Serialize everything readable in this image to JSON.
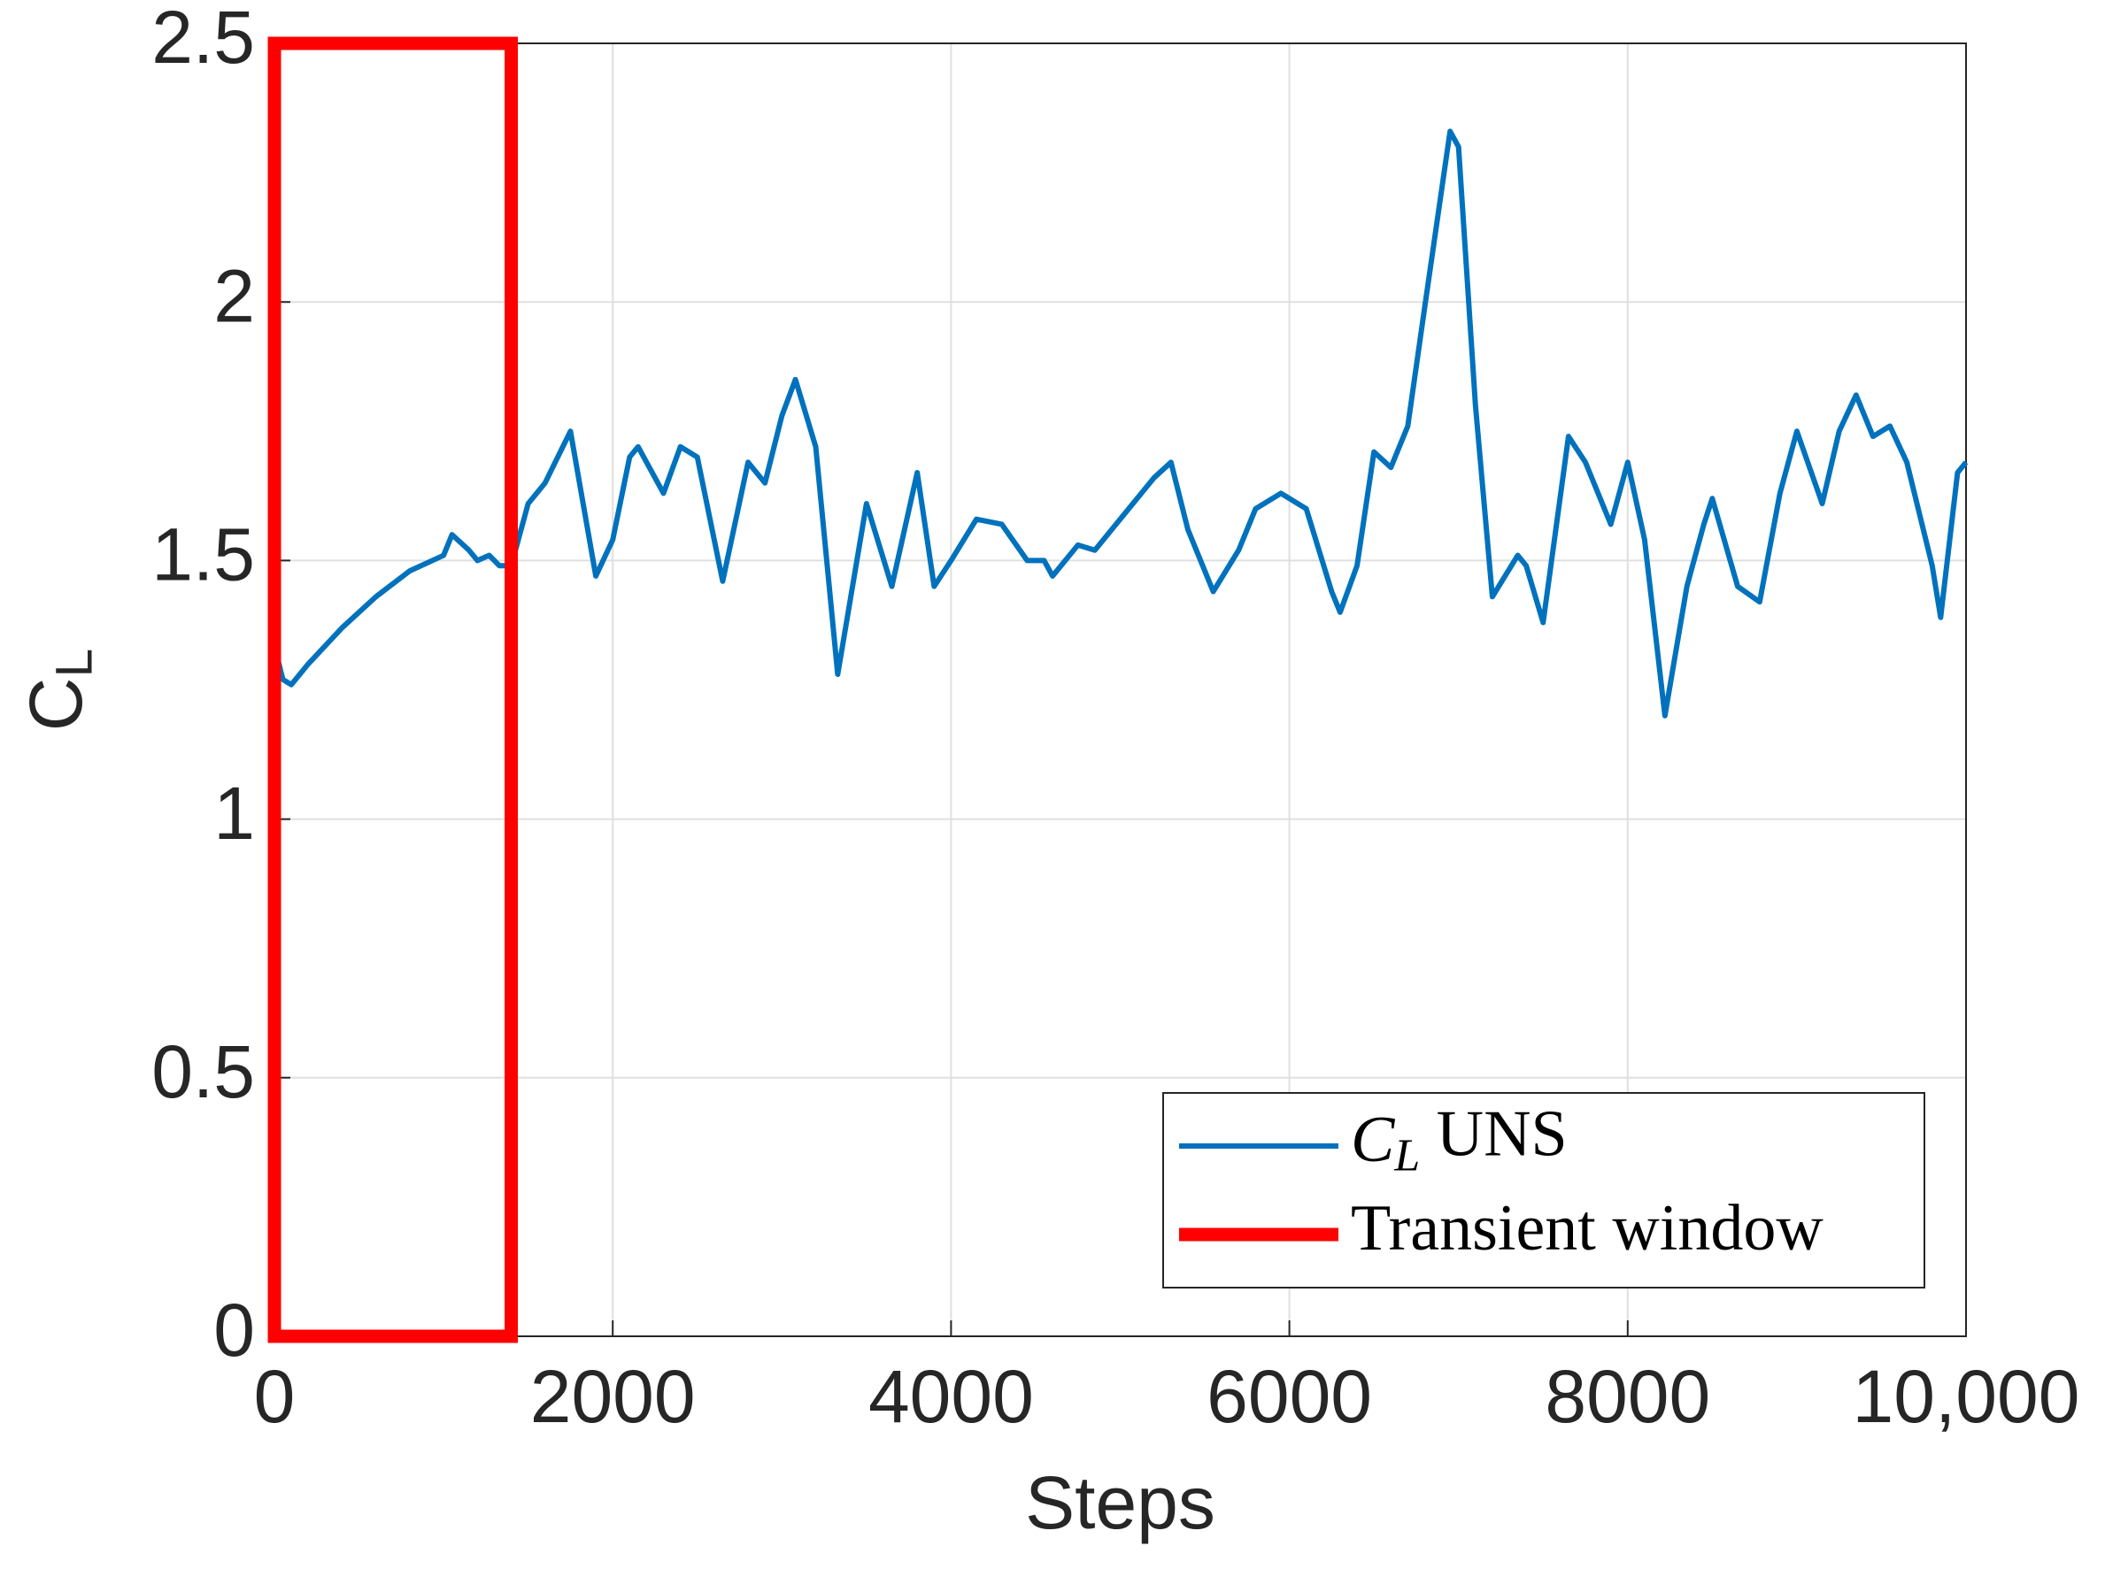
{
  "chart_data": {
    "type": "line",
    "xlabel": "Steps",
    "ylabel": "CL",
    "x": [
      0,
      50,
      100,
      200,
      400,
      600,
      800,
      1000,
      1050,
      1150,
      1200,
      1270,
      1330,
      1400,
      1500,
      1600,
      1750,
      1900,
      2000,
      2100,
      2150,
      2300,
      2400,
      2500,
      2650,
      2800,
      2900,
      3000,
      3080,
      3200,
      3330,
      3500,
      3650,
      3800,
      3900,
      4000,
      4150,
      4300,
      4450,
      4550,
      4600,
      4750,
      4850,
      5000,
      5200,
      5300,
      5400,
      5550,
      5700,
      5800,
      5950,
      6100,
      6250,
      6300,
      6400,
      6500,
      6600,
      6700,
      6800,
      6950,
      7000,
      7100,
      7200,
      7350,
      7400,
      7500,
      7650,
      7750,
      7900,
      8000,
      8100,
      8220,
      8350,
      8450,
      8500,
      8650,
      8780,
      8900,
      9000,
      9150,
      9250,
      9350,
      9450,
      9550,
      9650,
      9800,
      9850,
      9950,
      10000
    ],
    "series": [
      {
        "name": "CL UNS",
        "color": "#0072bd",
        "values": [
          1.335,
          1.27,
          1.26,
          1.3,
          1.37,
          1.43,
          1.48,
          1.51,
          1.55,
          1.52,
          1.5,
          1.51,
          1.49,
          1.49,
          1.61,
          1.65,
          1.75,
          1.47,
          1.54,
          1.7,
          1.72,
          1.63,
          1.72,
          1.7,
          1.46,
          1.69,
          1.65,
          1.78,
          1.85,
          1.72,
          1.28,
          1.61,
          1.45,
          1.67,
          1.45,
          1.5,
          1.58,
          1.57,
          1.5,
          1.5,
          1.47,
          1.53,
          1.52,
          1.58,
          1.66,
          1.69,
          1.56,
          1.44,
          1.52,
          1.6,
          1.63,
          1.6,
          1.44,
          1.4,
          1.49,
          1.71,
          1.68,
          1.76,
          1.99,
          2.33,
          2.3,
          1.8,
          1.43,
          1.51,
          1.49,
          1.38,
          1.74,
          1.69,
          1.57,
          1.69,
          1.54,
          1.2,
          1.45,
          1.57,
          1.62,
          1.45,
          1.42,
          1.63,
          1.75,
          1.61,
          1.75,
          1.82,
          1.74,
          1.76,
          1.69,
          1.49,
          1.39,
          1.67,
          1.69
        ]
      }
    ],
    "shapes": [
      {
        "name": "Transient window",
        "color": "#ff0000",
        "x": [
          0,
          1400
        ],
        "y": [
          0,
          2.5
        ]
      }
    ],
    "xlim": [
      0,
      10000
    ],
    "xticks": [
      0,
      2000,
      4000,
      6000,
      8000,
      {
        "value": 10000,
        "label": "10,000"
      }
    ],
    "ylim": [
      0,
      2.5
    ],
    "yticks": [
      0,
      0.5,
      1,
      1.5,
      2,
      2.5
    ],
    "grid": true,
    "legend": "lower right"
  }
}
